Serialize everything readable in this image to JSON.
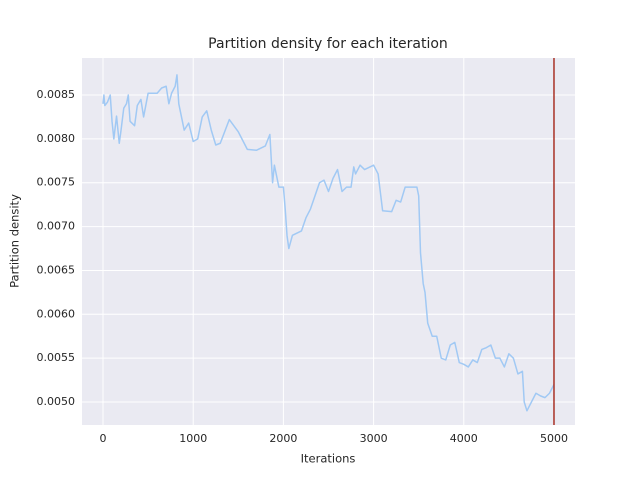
{
  "chart_data": {
    "type": "line",
    "title": "Partition density for each iteration",
    "x_label": "Iterations",
    "y_label": "Partition density",
    "x": [
      0,
      10,
      20,
      50,
      80,
      100,
      120,
      150,
      180,
      200,
      230,
      260,
      280,
      300,
      350,
      380,
      420,
      450,
      500,
      550,
      600,
      650,
      700,
      730,
      760,
      800,
      820,
      840,
      880,
      900,
      950,
      1000,
      1050,
      1100,
      1150,
      1200,
      1250,
      1300,
      1400,
      1450,
      1500,
      1600,
      1700,
      1800,
      1850,
      1880,
      1900,
      1950,
      2000,
      2020,
      2040,
      2060,
      2100,
      2200,
      2250,
      2300,
      2350,
      2400,
      2450,
      2500,
      2550,
      2600,
      2650,
      2700,
      2750,
      2780,
      2800,
      2850,
      2900,
      3000,
      3050,
      3100,
      3200,
      3250,
      3300,
      3350,
      3400,
      3480,
      3500,
      3520,
      3550,
      3570,
      3600,
      3650,
      3700,
      3750,
      3800,
      3850,
      3900,
      3950,
      4000,
      4050,
      4100,
      4150,
      4200,
      4250,
      4300,
      4350,
      4400,
      4450,
      4500,
      4550,
      4600,
      4650,
      4670,
      4700,
      4750,
      4800,
      4850,
      4900,
      4950,
      5000
    ],
    "values": [
      0.0084,
      0.0085,
      0.00838,
      0.00842,
      0.0085,
      0.0082,
      0.008,
      0.00826,
      0.00795,
      0.0081,
      0.00835,
      0.0084,
      0.0085,
      0.0082,
      0.00815,
      0.00838,
      0.00845,
      0.00825,
      0.00852,
      0.00852,
      0.00852,
      0.00858,
      0.0086,
      0.0084,
      0.00852,
      0.0086,
      0.00873,
      0.0084,
      0.0082,
      0.0081,
      0.00818,
      0.00797,
      0.008,
      0.00825,
      0.00832,
      0.0081,
      0.00793,
      0.00795,
      0.00822,
      0.00815,
      0.00808,
      0.00788,
      0.00787,
      0.00792,
      0.00805,
      0.0075,
      0.0077,
      0.00745,
      0.00745,
      0.0072,
      0.0069,
      0.00675,
      0.0069,
      0.00695,
      0.0071,
      0.0072,
      0.00735,
      0.0075,
      0.00753,
      0.0074,
      0.00755,
      0.00765,
      0.0074,
      0.00745,
      0.00745,
      0.00768,
      0.0076,
      0.0077,
      0.00765,
      0.0077,
      0.0076,
      0.00718,
      0.00717,
      0.0073,
      0.00728,
      0.00745,
      0.00745,
      0.00745,
      0.00735,
      0.0067,
      0.00635,
      0.00625,
      0.0059,
      0.00575,
      0.00575,
      0.0055,
      0.00548,
      0.00565,
      0.00568,
      0.00545,
      0.00543,
      0.0054,
      0.00548,
      0.00545,
      0.0056,
      0.00562,
      0.00565,
      0.0055,
      0.0055,
      0.0054,
      0.00555,
      0.0055,
      0.00532,
      0.00535,
      0.005,
      0.0049,
      0.005,
      0.0051,
      0.00507,
      0.00505,
      0.0051,
      0.0052
    ],
    "color": "#a1c9f4",
    "vline": {
      "x": 5000,
      "color": "#a93226"
    },
    "xlim": [
      -233,
      5233
    ],
    "xticks": [
      0,
      1000,
      2000,
      3000,
      4000,
      5000
    ],
    "ylim": [
      0.004738,
      0.008922
    ],
    "yticks": [
      {
        "value": 0.005,
        "label": "0.0050"
      },
      0.0055,
      {
        "value": 0.006,
        "label": "0.0060"
      },
      0.0065,
      {
        "value": 0.007,
        "label": "0.0070"
      },
      0.0075,
      {
        "value": 0.008,
        "label": "0.0080"
      },
      0.0085
    ],
    "grid": true
  }
}
